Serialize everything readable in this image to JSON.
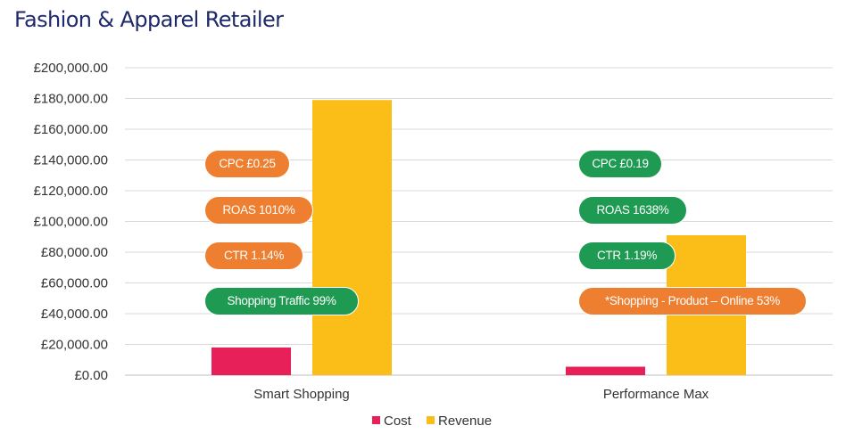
{
  "title": "Fashion & Apparel Retailer",
  "colors": {
    "cost": "#e8205a",
    "revenue": "#fbbd17",
    "orange_pill": "#ef7f30",
    "green_pill": "#1e9a53",
    "title": "#1f2a6b"
  },
  "annotations": {
    "smart_shopping": [
      {
        "text": "CPC £0.25",
        "color": "orange"
      },
      {
        "text": "ROAS 1010%",
        "color": "orange"
      },
      {
        "text": "CTR 1.14%",
        "color": "orange"
      },
      {
        "text": "Shopping Traffic 99%",
        "color": "green"
      }
    ],
    "performance_max": [
      {
        "text": "CPC £0.19",
        "color": "green"
      },
      {
        "text": "ROAS 1638%",
        "color": "green"
      },
      {
        "text": "CTR 1.19%",
        "color": "green"
      },
      {
        "text": "*Shopping - Product – Online 53%",
        "color": "orange"
      }
    ]
  },
  "chart_data": {
    "type": "bar",
    "title": "Fashion & Apparel Retailer",
    "categories": [
      "Smart Shopping",
      "Performance Max"
    ],
    "series": [
      {
        "name": "Cost",
        "values": [
          18000,
          5500
        ]
      },
      {
        "name": "Revenue",
        "values": [
          179000,
          91000
        ]
      }
    ],
    "ylim": [
      0,
      200000
    ],
    "yticks": [
      "£0.00",
      "£20,000.00",
      "£40,000.00",
      "£60,000.00",
      "£80,000.00",
      "£100,000.00",
      "£120,000.00",
      "£140,000.00",
      "£160,000.00",
      "£180,000.00",
      "£200,000.00"
    ],
    "grid": true,
    "legend": "bottom"
  }
}
